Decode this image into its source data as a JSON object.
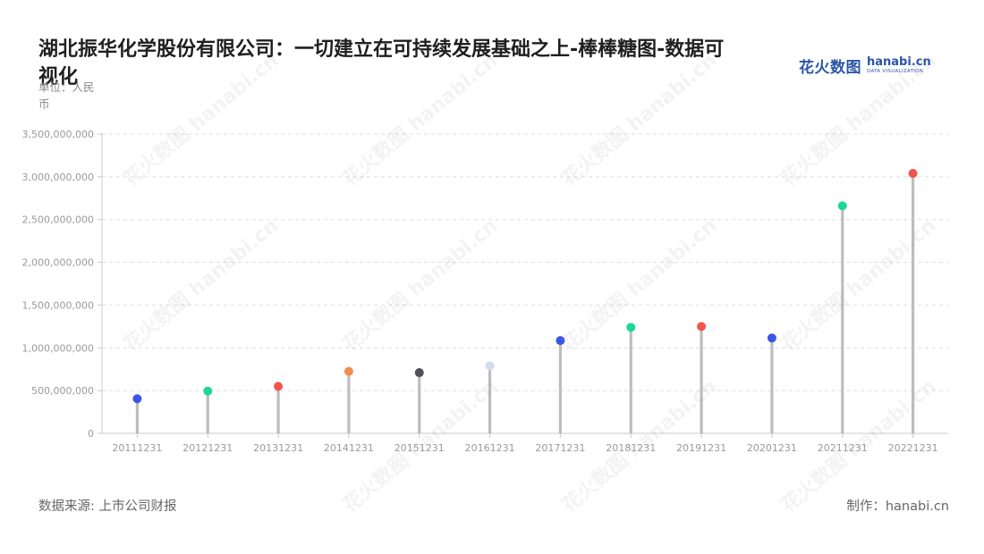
{
  "title": "湖北振华化学股份有限公司：一切建立在可持续发展基础之上-棒棒糖图-数据可视化",
  "unit_label": "单位：人民币",
  "logo": {
    "cn": "花火数图",
    "en": "hanabi.cn",
    "en_sub": "DATA VISUALIZATION"
  },
  "source": "数据来源: 上市公司财报",
  "credit": "制作：hanabi.cn",
  "watermark": "花火数图 hanabi.cn",
  "chart_data": {
    "type": "lollipop",
    "categories": [
      "20111231",
      "20121231",
      "20131231",
      "20141231",
      "20151231",
      "20161231",
      "20171231",
      "20181231",
      "20191231",
      "20201231",
      "20211231",
      "20221231"
    ],
    "values": [
      405000000,
      495000000,
      550000000,
      725000000,
      710000000,
      790000000,
      1085000000,
      1240000000,
      1250000000,
      1115000000,
      2660000000,
      3040000000
    ],
    "dot_colors": [
      "#3b55e6",
      "#1dd69a",
      "#f0554b",
      "#f58b4c",
      "#505057",
      "#d3dcec",
      "#3b55e6",
      "#1dd69a",
      "#f0554b",
      "#3b55e6",
      "#1dd69a",
      "#f0554b"
    ],
    "ylim": [
      0,
      3500000000
    ],
    "yticks": [
      0,
      500000000,
      1000000000,
      1500000000,
      2000000000,
      2500000000,
      3000000000,
      3500000000
    ],
    "ytick_labels": [
      "0",
      "500,000,000",
      "1,000,000,000",
      "1,500,000,000",
      "2,000,000,000",
      "2,500,000,000",
      "3,000,000,000",
      "3,500,000,000"
    ],
    "grid": true,
    "stem_color": "#bdbdbd",
    "grid_color": "#dedede",
    "axis_color": "#c8c8c8",
    "tick_label_color": "#9a9a9a"
  }
}
